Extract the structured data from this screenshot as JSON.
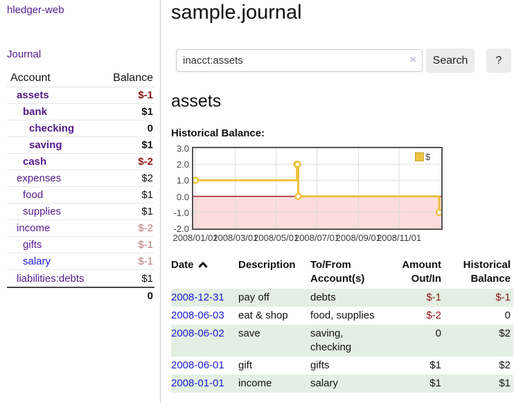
{
  "app": {
    "title": "hledger-web"
  },
  "sidebar": {
    "journal_link": "Journal",
    "accounts_header": {
      "account": "Account",
      "balance": "Balance"
    },
    "accounts": [
      {
        "name": "assets",
        "balance": "$-1",
        "depth": 1
      },
      {
        "name": "bank",
        "balance": "$1",
        "depth": 2
      },
      {
        "name": "checking",
        "balance": "0",
        "depth": 3
      },
      {
        "name": "saving",
        "balance": "$1",
        "depth": 3
      },
      {
        "name": "cash",
        "balance": "$-2",
        "depth": 2
      },
      {
        "name": "expenses",
        "balance": "$2",
        "depth": 1
      },
      {
        "name": "food",
        "balance": "$1",
        "depth": 2
      },
      {
        "name": "supplies",
        "balance": "$1",
        "depth": 2
      },
      {
        "name": "income",
        "balance": "$-2",
        "depth": 1
      },
      {
        "name": "gifts",
        "balance": "$-1",
        "depth": 2
      },
      {
        "name": "salary",
        "balance": "$-1",
        "depth": 2
      },
      {
        "name": "liabilities:debts",
        "balance": "$1",
        "depth": 1
      }
    ],
    "total": "0"
  },
  "main": {
    "title": "sample.journal",
    "search": {
      "value": "inacct:assets",
      "clear_icon": "×",
      "button": "Search",
      "help": "?"
    },
    "account_heading": "assets",
    "chart_label": "Historical Balance:"
  },
  "chart_data": {
    "type": "line",
    "title": "Historical Balance",
    "series": [
      {
        "name": "$",
        "color": "#edc240",
        "step": true,
        "points": [
          [
            "2008-01-01",
            1
          ],
          [
            "2008-06-01",
            2
          ],
          [
            "2008-06-02",
            2
          ],
          [
            "2008-06-03",
            0
          ],
          [
            "2008-12-31",
            -1
          ]
        ]
      }
    ],
    "ylim": [
      -2,
      3
    ],
    "yticks": [
      3.0,
      2.0,
      1.0,
      0.0,
      -1.0,
      -2.0
    ],
    "xticks": [
      "2008/01/01",
      "2008/03/01",
      "2008/05/01",
      "2008/07/01",
      "2008/09/01",
      "2008/11/01"
    ],
    "x_start": "2008-01-01",
    "x_end": "2008-12-31",
    "grid": true,
    "grid_color": "#dcdcdc",
    "zero_line_color": "#8f0f0f",
    "negative_fill": "#fcdddd",
    "legend": {
      "label": "$",
      "swatch_color": "#edc240",
      "position": "top-right"
    }
  },
  "register": {
    "headers": {
      "date": "Date",
      "description": "Description",
      "accounts": "To/From Account(s)",
      "amount": "Amount Out/In",
      "balance": "Historical Balance"
    },
    "rows": [
      {
        "date": "2008-12-31",
        "description": "pay off",
        "accounts": "debts",
        "amount": "$-1",
        "balance": "$-1"
      },
      {
        "date": "2008-06-03",
        "description": "eat & shop",
        "accounts": "food, supplies",
        "amount": "$-2",
        "balance": "0"
      },
      {
        "date": "2008-06-02",
        "description": "save",
        "accounts": "saving, checking",
        "amount": "0",
        "balance": "$2"
      },
      {
        "date": "2008-06-01",
        "description": "gift",
        "accounts": "gifts",
        "amount": "$1",
        "balance": "$2"
      },
      {
        "date": "2008-01-01",
        "description": "income",
        "accounts": "salary",
        "amount": "$1",
        "balance": "$1"
      }
    ]
  }
}
